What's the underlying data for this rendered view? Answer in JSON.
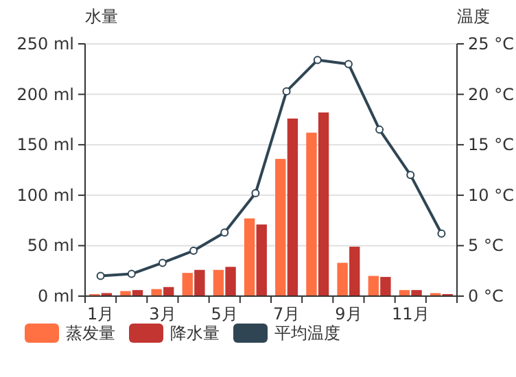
{
  "chart_data": {
    "type": "bar",
    "ylabel": "水量",
    "y2label": "温度",
    "categories": [
      "1月",
      null,
      "3月",
      null,
      "5月",
      null,
      "7月",
      null,
      "9月",
      null,
      "11月",
      null
    ],
    "series": [
      {
        "name": "蒸发量",
        "color": "#ff7043",
        "values": [
          2,
          5,
          7,
          23,
          26,
          77,
          136,
          162,
          33,
          20,
          6,
          3
        ]
      },
      {
        "name": "降水量",
        "color": "#c23531",
        "values": [
          3,
          6,
          9,
          26,
          29,
          71,
          176,
          182,
          49,
          19,
          6,
          2
        ]
      },
      {
        "name": "平均温度",
        "type": "line",
        "axis": "y2",
        "color": "#2f4554",
        "marker": "circle",
        "values": [
          2.0,
          2.2,
          3.3,
          4.5,
          6.3,
          10.2,
          20.3,
          23.4,
          23.0,
          16.5,
          12.0,
          6.2
        ]
      }
    ],
    "ylim": [
      0,
      250
    ],
    "yticks": [
      {
        "value": 0,
        "label": "0 ml"
      },
      {
        "value": 50,
        "label": "50 ml"
      },
      {
        "value": 100,
        "label": "100 ml"
      },
      {
        "value": 150,
        "label": "150 ml"
      },
      {
        "value": 200,
        "label": "200 ml"
      },
      {
        "value": 250,
        "label": "250 ml"
      }
    ],
    "y2lim": [
      0,
      25
    ],
    "y2ticks": [
      {
        "value": 0,
        "label": "0 °C"
      },
      {
        "value": 5,
        "label": "5 °C"
      },
      {
        "value": 10,
        "label": "10 °C"
      },
      {
        "value": 15,
        "label": "15 °C"
      },
      {
        "value": 20,
        "label": "20 °C"
      },
      {
        "value": 25,
        "label": "25 °C"
      }
    ],
    "grid": "y",
    "legend": "bottom left"
  }
}
